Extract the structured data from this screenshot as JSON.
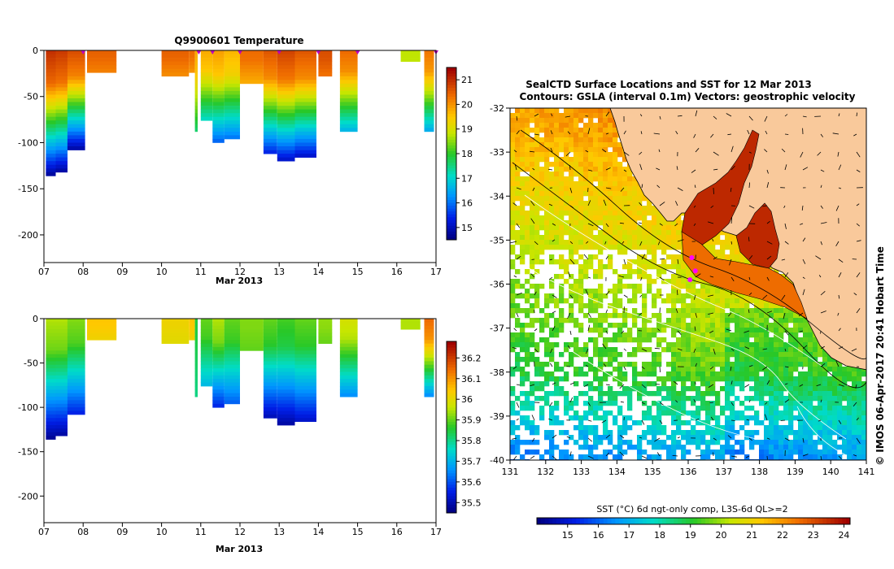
{
  "chart_data": [
    {
      "type": "heatmap",
      "title": "Q9900601  Temperature",
      "xlabel": "Mar 2013",
      "ylabel": "",
      "x_ticks": [
        "07",
        "08",
        "09",
        "10",
        "11",
        "12",
        "13",
        "14",
        "15",
        "16",
        "17"
      ],
      "x_tick_values": [
        7,
        8,
        9,
        10,
        11,
        12,
        13,
        14,
        15,
        16,
        17
      ],
      "xlim": [
        7,
        17
      ],
      "y_ticks": [
        "0",
        "-50",
        "-100",
        "-150",
        "-200"
      ],
      "y_tick_values": [
        0,
        -50,
        -100,
        -150,
        -200
      ],
      "ylim": [
        -230,
        0
      ],
      "colorbar": {
        "ticks": [
          "15",
          "16",
          "17",
          "18",
          "19",
          "20",
          "21"
        ],
        "tick_values": [
          15,
          16,
          17,
          18,
          19,
          20,
          21
        ],
        "range": [
          14.5,
          21.5
        ]
      },
      "surface_markers": [
        8,
        10.95,
        11.3,
        12,
        13,
        14,
        15,
        17
      ],
      "profiles": [
        {
          "t0": 7.05,
          "t1": 7.3,
          "depth": 135,
          "surface": 21.0,
          "bottom": 14.6
        },
        {
          "t0": 7.3,
          "t1": 7.6,
          "depth": 132,
          "surface": 20.9,
          "bottom": 14.6
        },
        {
          "t0": 7.6,
          "t1": 8.05,
          "depth": 105,
          "surface": 20.7,
          "bottom": 14.8
        },
        {
          "t0": 8.1,
          "t1": 8.85,
          "depth": 22,
          "surface": 20.5,
          "bottom": 20.2
        },
        {
          "t0": 10.0,
          "t1": 10.7,
          "depth": 25,
          "surface": 20.5,
          "bottom": 20.1
        },
        {
          "t0": 10.7,
          "t1": 10.85,
          "depth": 22,
          "surface": 20.4,
          "bottom": 20.0
        },
        {
          "t0": 10.85,
          "t1": 10.92,
          "depth": 88,
          "surface": 19.8,
          "bottom": 17.5
        },
        {
          "t0": 11.0,
          "t1": 11.3,
          "depth": 75,
          "surface": 19.8,
          "bottom": 17.0
        },
        {
          "t0": 11.3,
          "t1": 11.6,
          "depth": 98,
          "surface": 19.9,
          "bottom": 15.8
        },
        {
          "t0": 11.6,
          "t1": 12.0,
          "depth": 95,
          "surface": 19.7,
          "bottom": 15.9
        },
        {
          "t0": 12.0,
          "t1": 12.6,
          "depth": 33,
          "surface": 20.4,
          "bottom": 19.8
        },
        {
          "t0": 12.6,
          "t1": 12.95,
          "depth": 110,
          "surface": 20.6,
          "bottom": 15.3
        },
        {
          "t0": 12.95,
          "t1": 13.4,
          "depth": 120,
          "surface": 20.8,
          "bottom": 14.9
        },
        {
          "t0": 13.4,
          "t1": 13.95,
          "depth": 113,
          "surface": 20.6,
          "bottom": 15.1
        },
        {
          "t0": 14.0,
          "t1": 14.35,
          "depth": 28,
          "surface": 20.7,
          "bottom": 20.3
        },
        {
          "t0": 14.55,
          "t1": 15.0,
          "depth": 85,
          "surface": 20.4,
          "bottom": 16.6
        },
        {
          "t0": 16.1,
          "t1": 16.6,
          "depth": 9,
          "surface": 18.8,
          "bottom": 18.8
        },
        {
          "t0": 16.7,
          "t1": 16.95,
          "depth": 85,
          "surface": 20.3,
          "bottom": 16.5
        }
      ]
    },
    {
      "type": "heatmap",
      "title": "",
      "xlabel": "Mar 2013",
      "ylabel": "",
      "x_ticks": [
        "07",
        "08",
        "09",
        "10",
        "11",
        "12",
        "13",
        "14",
        "15",
        "16",
        "17"
      ],
      "x_tick_values": [
        7,
        8,
        9,
        10,
        11,
        12,
        13,
        14,
        15,
        16,
        17
      ],
      "xlim": [
        7,
        17
      ],
      "y_ticks": [
        "0",
        "-50",
        "-100",
        "-150",
        "-200"
      ],
      "y_tick_values": [
        0,
        -50,
        -100,
        -150,
        -200
      ],
      "ylim": [
        -230,
        0
      ],
      "colorbar": {
        "ticks": [
          "35.5",
          "35.6",
          "35.7",
          "35.8",
          "35.9",
          "36",
          "36.1",
          "36.2"
        ],
        "tick_values": [
          35.5,
          35.6,
          35.7,
          35.8,
          35.9,
          36.0,
          36.1,
          36.2
        ],
        "range": [
          35.45,
          36.28
        ]
      },
      "profiles": [
        {
          "t0": 7.05,
          "t1": 7.3,
          "depth": 135,
          "surface": 35.95,
          "bottom": 35.46
        },
        {
          "t0": 7.3,
          "t1": 7.6,
          "depth": 132,
          "surface": 35.95,
          "bottom": 35.47
        },
        {
          "t0": 7.6,
          "t1": 8.05,
          "depth": 105,
          "surface": 35.92,
          "bottom": 35.55
        },
        {
          "t0": 8.1,
          "t1": 8.85,
          "depth": 22,
          "surface": 36.05,
          "bottom": 36.02
        },
        {
          "t0": 10.0,
          "t1": 10.7,
          "depth": 25,
          "surface": 36.02,
          "bottom": 36.0
        },
        {
          "t0": 10.7,
          "t1": 10.85,
          "depth": 22,
          "surface": 36.05,
          "bottom": 36.02
        },
        {
          "t0": 10.85,
          "t1": 10.92,
          "depth": 88,
          "surface": 35.85,
          "bottom": 35.8
        },
        {
          "t0": 11.0,
          "t1": 11.3,
          "depth": 75,
          "surface": 35.9,
          "bottom": 35.7
        },
        {
          "t0": 11.3,
          "t1": 11.6,
          "depth": 98,
          "surface": 35.95,
          "bottom": 35.55
        },
        {
          "t0": 11.6,
          "t1": 12.0,
          "depth": 95,
          "surface": 35.9,
          "bottom": 35.6
        },
        {
          "t0": 12.0,
          "t1": 12.6,
          "depth": 33,
          "surface": 35.92,
          "bottom": 35.9
        },
        {
          "t0": 12.6,
          "t1": 12.95,
          "depth": 110,
          "surface": 35.9,
          "bottom": 35.5
        },
        {
          "t0": 12.95,
          "t1": 13.4,
          "depth": 120,
          "surface": 35.88,
          "bottom": 35.47
        },
        {
          "t0": 13.4,
          "t1": 13.95,
          "depth": 113,
          "surface": 35.9,
          "bottom": 35.52
        },
        {
          "t0": 14.0,
          "t1": 14.35,
          "depth": 28,
          "surface": 35.93,
          "bottom": 35.9
        },
        {
          "t0": 14.55,
          "t1": 15.0,
          "depth": 85,
          "surface": 35.98,
          "bottom": 35.65
        },
        {
          "t0": 16.1,
          "t1": 16.6,
          "depth": 9,
          "surface": 35.95,
          "bottom": 35.95
        },
        {
          "t0": 16.7,
          "t1": 16.95,
          "depth": 85,
          "surface": 36.15,
          "bottom": 35.65
        }
      ]
    },
    {
      "type": "heatmap",
      "title": "SealCTD Surface Locations and SST for 12 Mar 2013",
      "subtitle": "Contours: GSLA (interval 0.1m) Vectors: geostrophic velocity",
      "x_ticks": [
        "131",
        "132",
        "133",
        "134",
        "135",
        "136",
        "137",
        "138",
        "139",
        "140",
        "141"
      ],
      "x_tick_values": [
        131,
        132,
        133,
        134,
        135,
        136,
        137,
        138,
        139,
        140,
        141
      ],
      "xlim": [
        131,
        141
      ],
      "y_ticks": [
        "-32",
        "-33",
        "-34",
        "-35",
        "-36",
        "-37",
        "-38",
        "-39",
        "-40"
      ],
      "y_tick_values": [
        -32,
        -33,
        -34,
        -35,
        -36,
        -37,
        -38,
        -39,
        -40
      ],
      "ylim": [
        -40,
        -32
      ],
      "colorbar": {
        "label": "SST (°C) 6d ngt-only comp, L3S-6d QL>=2",
        "ticks": [
          "15",
          "16",
          "17",
          "18",
          "19",
          "20",
          "21",
          "22",
          "23",
          "24"
        ],
        "tick_values": [
          15,
          16,
          17,
          18,
          19,
          20,
          21,
          22,
          23,
          24
        ],
        "range": [
          14,
          24.2
        ]
      },
      "seal_locations": [
        [
          136.1,
          -35.4
        ],
        [
          136.2,
          -35.7
        ],
        [
          136.05,
          -35.9
        ]
      ],
      "credit": "© IMOS 06-Apr-2017 20:41 Hobart Time",
      "colors": {
        "land": "#f9c99b",
        "seal_marker": "#ff00ff"
      }
    }
  ]
}
